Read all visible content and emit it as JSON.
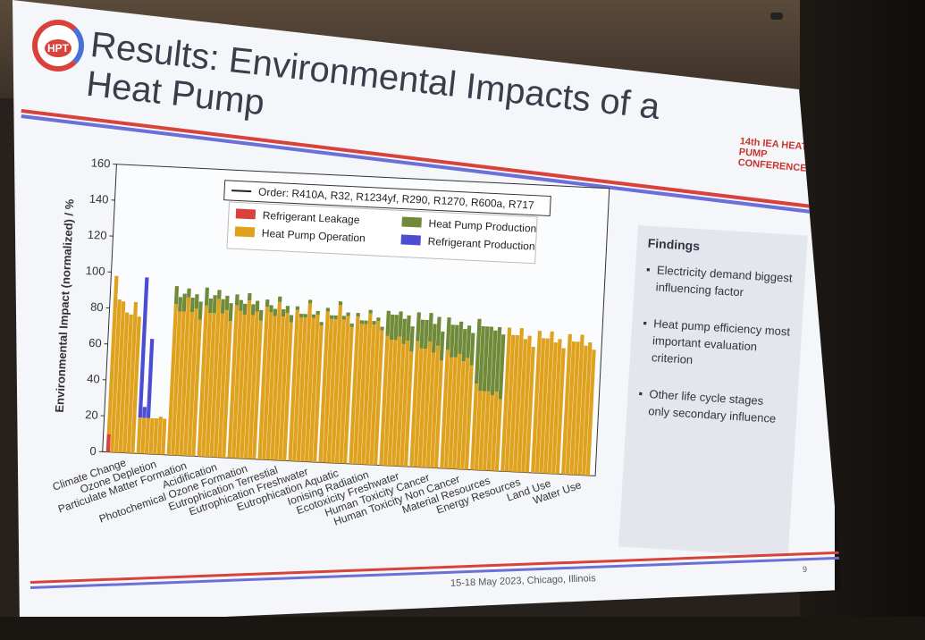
{
  "slide": {
    "title": "Results: Environmental Impacts of a Heat Pump",
    "logo_text": "HPT",
    "conference_logo_text": "14th IEA HEAT PUMP CONFERENCE",
    "footer": "15-18 May 2023, Chicago, Illinois",
    "page_number": "9"
  },
  "findings": {
    "title": "Findings",
    "bullets": [
      "Electricity demand biggest influencing factor",
      "Heat pump efficiency most important evaluation criterion",
      "Other life cycle stages only secondary influence"
    ]
  },
  "colors": {
    "leakage": "#d9423a",
    "operation": "#dea21f",
    "hp_production": "#6f8a38",
    "ref_production": "#4b4ed0"
  },
  "chart_data": {
    "type": "bar",
    "ylabel": "Environmental Impact (normalized) / %",
    "ylim": [
      0,
      160
    ],
    "yticks": [
      "0",
      "20",
      "40",
      "60",
      "80",
      "100",
      "120",
      "140",
      "160"
    ],
    "legend": {
      "order_note": "Order: R410A, R32, R1234yf, R290, R1270, R600a, R717",
      "items": [
        "Refrigerant Leakage",
        "Heat Pump Operation",
        "Heat Pump Production",
        "Refrigerant Production"
      ]
    },
    "refrigerants": [
      "R410A",
      "R32",
      "R1234yf",
      "R290",
      "R1270",
      "R600a",
      "R717"
    ],
    "categories": [
      "Climate Change",
      "Ozone Depletion",
      "Particulate Matter Formation",
      "Acidification",
      "Photochemical Ozone Formation",
      "Eutrophication Terrestial",
      "Eutrophication Freshwater",
      "Eutrophication Aquatic",
      "Ionising Radiation",
      "Ecotoxicity Freshwater",
      "Human Toxicity Cancer",
      "Human Toxicity Non Cancer",
      "Material Resources",
      "Energy Resources",
      "Land Use",
      "Water Use"
    ],
    "series": [
      {
        "name": "Refrigerant Leakage",
        "values": [
          [
            10,
            0,
            0,
            0,
            0,
            0,
            0
          ],
          [
            0,
            0,
            0,
            0,
            0,
            0,
            0
          ],
          [
            0,
            0,
            0,
            0,
            0,
            0,
            0
          ],
          [
            0,
            0,
            0,
            0,
            0,
            0,
            0
          ],
          [
            0,
            0,
            0,
            0,
            0,
            0,
            0
          ],
          [
            0,
            0,
            0,
            0,
            0,
            0,
            0
          ],
          [
            0,
            0,
            0,
            0,
            0,
            0,
            0
          ],
          [
            0,
            0,
            0,
            0,
            0,
            0,
            0
          ],
          [
            0,
            0,
            0,
            0,
            0,
            0,
            0
          ],
          [
            0,
            0,
            0,
            0,
            0,
            0,
            0
          ],
          [
            0,
            0,
            0,
            0,
            0,
            0,
            0
          ],
          [
            0,
            0,
            0,
            0,
            0,
            0,
            0
          ],
          [
            0,
            0,
            0,
            0,
            0,
            0,
            0
          ],
          [
            0,
            0,
            0,
            0,
            0,
            0,
            0
          ],
          [
            0,
            0,
            0,
            0,
            0,
            0,
            0
          ],
          [
            0,
            0,
            0,
            0,
            0,
            0,
            0
          ]
        ]
      },
      {
        "name": "Heat Pump Operation",
        "values": [
          [
            88,
            85,
            84,
            78,
            77,
            84,
            76
          ],
          [
            20,
            20,
            20,
            20,
            20,
            21,
            20
          ],
          [
            84,
            80,
            80,
            88,
            80,
            82,
            76
          ],
          [
            84,
            80,
            80,
            88,
            80,
            82,
            76
          ],
          [
            85,
            82,
            80,
            88,
            80,
            82,
            77
          ],
          [
            85,
            82,
            80,
            88,
            80,
            82,
            77
          ],
          [
            84,
            80,
            80,
            88,
            80,
            82,
            76
          ],
          [
            84,
            80,
            80,
            88,
            80,
            82,
            76
          ],
          [
            82,
            78,
            78,
            84,
            78,
            80,
            75
          ],
          [
            72,
            70,
            70,
            72,
            68,
            70,
            64
          ],
          [
            70,
            66,
            66,
            70,
            64,
            68,
            60
          ],
          [
            66,
            62,
            62,
            64,
            60,
            62,
            58
          ],
          [
            48,
            44,
            44,
            44,
            42,
            44,
            40
          ],
          [
            80,
            76,
            76,
            80,
            74,
            76,
            70
          ],
          [
            79,
            75,
            75,
            79,
            73,
            75,
            70
          ],
          [
            78,
            74,
            74,
            78,
            72,
            74,
            70
          ]
        ]
      },
      {
        "name": "Heat Pump Production",
        "values": [
          [
            0,
            0,
            0,
            0,
            0,
            0,
            0
          ],
          [
            0,
            0,
            0,
            0,
            0,
            0,
            0
          ],
          [
            10,
            8,
            10,
            5,
            8,
            8,
            10
          ],
          [
            10,
            8,
            10,
            5,
            8,
            8,
            10
          ],
          [
            6,
            6,
            6,
            4,
            6,
            6,
            6
          ],
          [
            4,
            4,
            4,
            3,
            4,
            4,
            4
          ],
          [
            2,
            2,
            2,
            2,
            2,
            2,
            2
          ],
          [
            2,
            2,
            2,
            2,
            2,
            2,
            2
          ],
          [
            2,
            2,
            2,
            2,
            2,
            2,
            2
          ],
          [
            14,
            14,
            14,
            14,
            14,
            14,
            14
          ],
          [
            16,
            16,
            16,
            16,
            16,
            16,
            16
          ],
          [
            18,
            18,
            18,
            18,
            18,
            18,
            18
          ],
          [
            36,
            36,
            36,
            36,
            36,
            36,
            36
          ],
          [
            0,
            0,
            0,
            0,
            0,
            0,
            0
          ],
          [
            0,
            0,
            0,
            0,
            0,
            0,
            0
          ],
          [
            0,
            0,
            0,
            0,
            0,
            0,
            0
          ]
        ]
      },
      {
        "name": "Refrigerant Production",
        "values": [
          [
            0,
            0,
            0,
            0,
            0,
            0,
            0
          ],
          [
            78,
            6,
            44,
            0,
            0,
            0,
            0
          ],
          [
            0,
            0,
            0,
            0,
            0,
            0,
            0
          ],
          [
            0,
            0,
            0,
            0,
            0,
            0,
            0
          ],
          [
            0,
            0,
            0,
            0,
            0,
            0,
            0
          ],
          [
            0,
            0,
            0,
            0,
            0,
            0,
            0
          ],
          [
            0,
            0,
            0,
            0,
            0,
            0,
            0
          ],
          [
            0,
            0,
            0,
            0,
            0,
            0,
            0
          ],
          [
            0,
            0,
            0,
            0,
            0,
            0,
            0
          ],
          [
            0,
            0,
            0,
            0,
            0,
            0,
            0
          ],
          [
            0,
            0,
            0,
            0,
            0,
            0,
            0
          ],
          [
            0,
            0,
            0,
            0,
            0,
            0,
            0
          ],
          [
            0,
            0,
            0,
            0,
            0,
            0,
            0
          ],
          [
            0,
            0,
            0,
            0,
            0,
            0,
            0
          ],
          [
            0,
            0,
            0,
            0,
            0,
            0,
            0
          ],
          [
            0,
            0,
            0,
            0,
            0,
            0,
            0
          ]
        ]
      }
    ]
  }
}
